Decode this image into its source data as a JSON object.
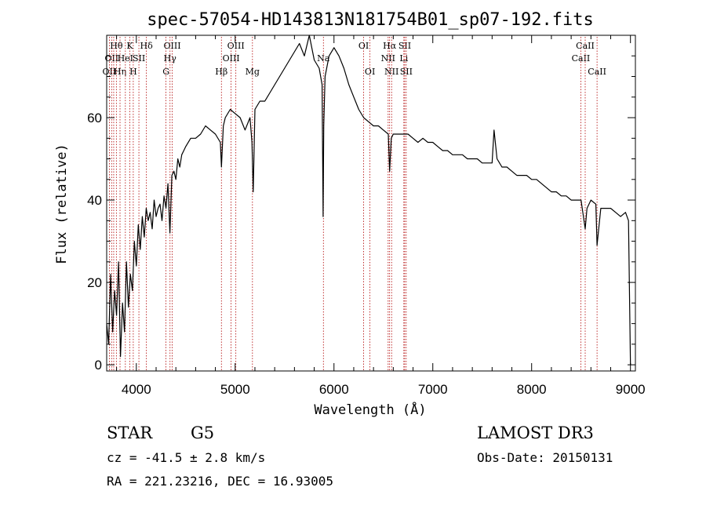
{
  "chart_data": {
    "type": "line",
    "title": "spec-57054-HD143813N181754B01_sp07-192.fits",
    "xlabel": "Wavelength (Å)",
    "ylabel": "Flux (relative)",
    "xlim": [
      3700,
      9050
    ],
    "ylim": [
      -1.5,
      80
    ],
    "xticks": [
      4000,
      5000,
      6000,
      7000,
      8000,
      9000
    ],
    "yticks": [
      0,
      20,
      40,
      60
    ],
    "grid": false,
    "series": [
      {
        "color": "#000000",
        "x": [
          3700,
          3720,
          3740,
          3760,
          3780,
          3800,
          3820,
          3840,
          3860,
          3880,
          3900,
          3920,
          3940,
          3960,
          3980,
          4000,
          4020,
          4040,
          4060,
          4080,
          4100,
          4120,
          4140,
          4160,
          4180,
          4200,
          4220,
          4240,
          4260,
          4280,
          4300,
          4320,
          4340,
          4360,
          4380,
          4400,
          4420,
          4440,
          4460,
          4480,
          4500,
          4550,
          4600,
          4650,
          4700,
          4750,
          4800,
          4850,
          4861,
          4880,
          4900,
          4950,
          5000,
          5050,
          5100,
          5150,
          5170,
          5183,
          5200,
          5250,
          5300,
          5350,
          5400,
          5450,
          5500,
          5550,
          5600,
          5650,
          5700,
          5750,
          5800,
          5850,
          5880,
          5890,
          5896,
          5910,
          5950,
          6000,
          6050,
          6100,
          6150,
          6200,
          6250,
          6300,
          6350,
          6400,
          6450,
          6500,
          6550,
          6563,
          6580,
          6600,
          6650,
          6700,
          6750,
          6800,
          6850,
          6900,
          6950,
          7000,
          7050,
          7100,
          7150,
          7200,
          7250,
          7300,
          7350,
          7400,
          7450,
          7500,
          7550,
          7600,
          7620,
          7650,
          7700,
          7750,
          7800,
          7850,
          7900,
          7950,
          8000,
          8050,
          8100,
          8150,
          8200,
          8250,
          8300,
          8350,
          8400,
          8450,
          8500,
          8542,
          8560,
          8600,
          8650,
          8662,
          8700,
          8750,
          8800,
          8850,
          8900,
          8950,
          8980,
          9000
        ],
        "values": [
          10,
          5,
          22,
          8,
          18,
          12,
          25,
          2,
          15,
          8,
          25,
          14,
          22,
          18,
          30,
          24,
          34,
          28,
          36,
          31,
          38,
          35,
          37,
          33,
          40,
          36,
          38,
          39,
          35,
          41,
          38,
          44,
          32,
          46,
          47,
          45,
          50,
          48,
          51,
          52,
          53,
          55,
          55,
          56,
          58,
          57,
          56,
          54,
          48,
          58,
          60,
          62,
          61,
          60,
          57,
          60,
          54,
          42,
          62,
          64,
          64,
          66,
          68,
          70,
          72,
          74,
          76,
          78,
          75,
          80,
          74,
          72,
          68,
          36,
          58,
          70,
          75,
          77,
          75,
          72,
          68,
          65,
          62,
          60,
          59,
          58,
          58,
          57,
          56,
          47,
          55,
          56,
          56,
          56,
          56,
          55,
          54,
          55,
          54,
          54,
          53,
          52,
          52,
          51,
          51,
          51,
          50,
          50,
          50,
          49,
          49,
          49,
          57,
          50,
          48,
          48,
          47,
          46,
          46,
          46,
          45,
          45,
          44,
          43,
          42,
          42,
          41,
          41,
          40,
          40,
          40,
          33,
          38,
          40,
          39,
          29,
          38,
          38,
          38,
          37,
          36,
          37,
          35,
          0
        ]
      }
    ],
    "line_markers": [
      {
        "wl": 3727,
        "label": "OII",
        "row": 3
      },
      {
        "wl": 3750,
        "label": "OII",
        "row": 2
      },
      {
        "wl": 3771,
        "label": "",
        "row": 0
      },
      {
        "wl": 3798,
        "label": "Hθ",
        "row": 1
      },
      {
        "wl": 3835,
        "label": "Hη",
        "row": 3
      },
      {
        "wl": 3889,
        "label": "HeI",
        "row": 2
      },
      {
        "wl": 3934,
        "label": "K",
        "row": 1
      },
      {
        "wl": 3969,
        "label": "H",
        "row": 3
      },
      {
        "wl": 4026,
        "label": "SII",
        "row": 2
      },
      {
        "wl": 4102,
        "label": "Hδ",
        "row": 1
      },
      {
        "wl": 4300,
        "label": "G",
        "row": 3
      },
      {
        "wl": 4341,
        "label": "Hγ",
        "row": 2
      },
      {
        "wl": 4363,
        "label": "OIII",
        "row": 1
      },
      {
        "wl": 4861,
        "label": "Hβ",
        "row": 3
      },
      {
        "wl": 4959,
        "label": "OIII",
        "row": 2
      },
      {
        "wl": 5007,
        "label": "OIII",
        "row": 1
      },
      {
        "wl": 5175,
        "label": "Mg",
        "row": 3
      },
      {
        "wl": 5893,
        "label": "Na",
        "row": 2
      },
      {
        "wl": 6300,
        "label": "OI",
        "row": 1
      },
      {
        "wl": 6364,
        "label": "OI",
        "row": 3
      },
      {
        "wl": 6548,
        "label": "NII",
        "row": 2
      },
      {
        "wl": 6563,
        "label": "Hα",
        "row": 1
      },
      {
        "wl": 6583,
        "label": "NII",
        "row": 3
      },
      {
        "wl": 6707,
        "label": "Li",
        "row": 2
      },
      {
        "wl": 6716,
        "label": "SII",
        "row": 1
      },
      {
        "wl": 6731,
        "label": "SII",
        "row": 3
      },
      {
        "wl": 8498,
        "label": "CaII",
        "row": 2
      },
      {
        "wl": 8542,
        "label": "CaII",
        "row": 1
      },
      {
        "wl": 8662,
        "label": "CaII",
        "row": 3
      }
    ]
  },
  "info": {
    "object_type": "STAR",
    "subclass": "G5",
    "survey": "LAMOST DR3",
    "redshift": "cz = -41.5 ± 2.8 km/s",
    "obs_date": "Obs-Date: 20150131",
    "coords": "RA = 221.23216, DEC =  16.93005"
  }
}
